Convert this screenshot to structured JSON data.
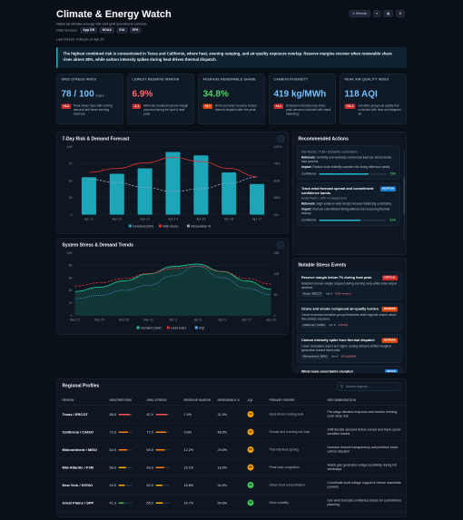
{
  "header": {
    "title": "Climate & Energy Watch",
    "subtitle": "National climate-energy risk and grid operations console",
    "sources_label": "Data Sources:",
    "sources": [
      "App DB",
      "NOAA",
      "EIA",
      "EPA"
    ],
    "last_refresh": "Last refresh: 4:38 pm on Apr 20",
    "refresh": "Refresh"
  },
  "insight": "The highest combined risk is concentrated in Texas and California, where heat, evening ramping, and air-quality exposure overlap. Reserve margins recover when renewable share rises above 38%, while carbon intensity spikes during heat-driven thermal dispatch.",
  "kpis": [
    {
      "label": "GRID STRESS INDEX",
      "value": "78 / 100",
      "unit": "index",
      "delta": "+4.2",
      "note": "Peak stress rises with cooling demand and fewer evening reserves.",
      "color": "#74c0fc",
      "delta_color": "#c92a2a"
    },
    {
      "label": "LOWEST RESERVE MARGIN",
      "value": "6.9%",
      "delta": "-1.1",
      "note": "Minimum modeled reserve margin occurred during the April 6 heat peak.",
      "color": "#ff6b6b",
      "delta_color": "#c92a2a"
    },
    {
      "label": "AVERAGE RENEWABLE SHARE",
      "value": "34.8%",
      "delta": "+2.7",
      "note": "Wind and solar recovery reduce thermal dispatch after the peak.",
      "color": "#51cf66",
      "delta_color": "#d9480f"
    },
    {
      "label": "CARBON INTENSITY",
      "value": "419 kg/MWh",
      "delta": "+4.1",
      "note": "Emissions intensity rose when peak demand coincided with fossil balancing.",
      "color": "#74c0fc",
      "delta_color": "#c92a2a"
    },
    {
      "label": "PEAK AIR QUALITY INDEX",
      "value": "118 AQI",
      "delta": "+11.1",
      "note": "Sensitive-groups air quality risk coincided with heat and stagnant air.",
      "color": "#74c0fc",
      "delta_color": "#c92a2a"
    }
  ],
  "chart_data": [
    {
      "type": "bar",
      "title": "7-Day Risk & Demand Forecast",
      "categories": [
        "Apr 11",
        "Apr 12",
        "Apr 13",
        "Apr 14",
        "Apr 15",
        "Apr 16",
        "Apr 17"
      ],
      "series": [
        {
          "name": "Demand (GW)",
          "type": "bar",
          "color": "#1fb5c9",
          "values": [
            55,
            60,
            68,
            92,
            87,
            62,
            45
          ]
        },
        {
          "name": "Risk Score",
          "type": "line",
          "color": "#e03131",
          "values": [
            62,
            68,
            76,
            84,
            78,
            68,
            56
          ]
        },
        {
          "name": "Renewable %",
          "type": "line",
          "color": "#8ea2c0",
          "line_style": "dashed",
          "axis": "y2",
          "values": [
            52,
            47,
            40,
            34,
            38,
            46,
            55
          ]
        }
      ],
      "ylim": [
        0,
        100
      ],
      "yticks": [
        0,
        25,
        50,
        75,
        100
      ],
      "y2lim": [
        0,
        100
      ],
      "y2ticks": [
        {
          "value": 0,
          "label": "0%"
        },
        {
          "value": 25,
          "label": "25%"
        },
        {
          "value": 50,
          "label": "50%"
        },
        {
          "value": 75,
          "label": "75%"
        },
        {
          "value": 100,
          "label": "100%"
        }
      ],
      "grid": true,
      "legend": "bottom"
    },
    {
      "type": "line",
      "title": "System Stress & Demand Trends",
      "categories": [
        "Mar 22",
        "Mar 25",
        "Mar 28",
        "Mar 31",
        "Apr 3",
        "Apr 6",
        "Apr 9",
        "Apr 12",
        "Apr 15"
      ],
      "series": [
        {
          "name": "Demand (GW)",
          "type": "area",
          "color": "#20c997",
          "values": [
            38,
            45,
            55,
            66,
            78,
            82,
            70,
            55,
            42
          ]
        },
        {
          "name": "Heat Index",
          "type": "line",
          "color": "#e03131",
          "line_style": "dashed",
          "axis": "y2",
          "values": [
            70,
            78,
            88,
            100,
            112,
            118,
            105,
            88,
            75
          ]
        },
        {
          "name": "AQI",
          "type": "line",
          "color": "#4dabf7",
          "line_style": "dotted",
          "axis": "y2",
          "values": [
            40,
            48,
            60,
            72,
            95,
            118,
            90,
            65,
            50
          ]
        }
      ],
      "ylim": [
        0,
        100
      ],
      "yticks": [
        0,
        20,
        40,
        60,
        80,
        100
      ],
      "y2lim": [
        0,
        150
      ],
      "y2ticks": [
        0,
        50,
        100,
        150
      ],
      "grid": true,
      "legend": "bottom"
    }
  ],
  "actions": {
    "title": "Recommended Actions",
    "items": [
      {
        "meta": "Mid-Atlantic / PJM • Reliability coordination",
        "rationale_label": "Rationale:",
        "rationale": "Humidity and weekday commercial load can stress dense load pockets.",
        "impact_label": "Impact:",
        "impact": "Reduce local reliability surprise risk during afternoon peaks.",
        "confidence_label": "Confidence",
        "confidence": 73,
        "confidence_text": "73%"
      },
      {
        "title": "Track wind forecast spread and commitment confidence bands.",
        "tag": "MONITOR",
        "meta": "Great Plains / SPP • Forecast error",
        "rationale_label": "Rationale:",
        "rationale": "High-variance wind ramps increase balancing uncertainty.",
        "impact_label": "Impact:",
        "impact": "Improve commitment timing without over-procuring thermal backup.",
        "confidence_label": "Confidence",
        "confidence": 61,
        "confidence_text": "61%"
      }
    ]
  },
  "events": {
    "title": "Notable Stress Events",
    "items": [
      {
        "title": "Reserve margin below 7% during heat peak",
        "tag": "CRITICAL",
        "tag_color": "#c92a2a",
        "description": "Modeled reserve margin dropped during evening ramp while solar output declined.",
        "region": "Texas / ERCOT",
        "date": "Apr 6",
        "metric": "6.9% reserve"
      },
      {
        "title": "Ozone and smoke compound air-quality burden",
        "tag": "WARNING",
        "tag_color": "#d9480f",
        "description": "Ozone exceeded sensitive-group thresholds while regional smoke raised fine-particle exposure.",
        "region": "California / CAISO",
        "date": "Apr 6",
        "metric": "118 AQI"
      },
      {
        "title": "Carbon intensity spike from thermal dispatch",
        "tag": "WARNING",
        "tag_color": "#d9480f",
        "description": "Lower renewable output and higher cooling demand shifted marginal generation toward fossil units.",
        "region": "Midcontinent / MISO",
        "date": "Apr 6",
        "metric": "419 kg/MWh"
      },
      {
        "title": "Wind ramp uncertainty elevated",
        "tag": "WATCH",
        "tag_color": "#1c7ed6"
      }
    ]
  },
  "table": {
    "title": "Regional Profiles",
    "search": "Search regions...",
    "columns": [
      "REGION",
      "WEATHER RISK",
      "GRID STRESS",
      "RESERVE MARGIN",
      "RENEWABLE %",
      "AQI",
      "PRIMARY DRIVER",
      "RECOMMENDATION"
    ],
    "rows": [
      [
        "Texas / ERCOT",
        "88.0",
        "87.0",
        "7.4%",
        "31.0%",
        "74",
        "Heat-driven cooling load",
        "Pre-stage demand response and monitor evening solar ramp risk."
      ],
      [
        "California / CAISO",
        "72.0",
        "77.0",
        "9.8%",
        "48.0%",
        "92",
        "Smoke and evening net load",
        "Shift flexible demand before sunset and track ozone-sensitive basins."
      ],
      [
        "Midcontinent / MISO",
        "64.0",
        "69.0",
        "12.2%",
        "29.0%",
        "58",
        "Thermal fleet cycling",
        "Increase reserve transparency and prioritize lower-carbon dispatch."
      ],
      [
        "Mid-Atlantic / PJM",
        "58.0",
        "63.0",
        "15.1%",
        "18.0%",
        "66",
        "Peak load congestion",
        "Watch gas generator outage sensitivity during hot weekdays."
      ],
      [
        "New York / NYISO",
        "49.0",
        "52.0",
        "18.8%",
        "34.0%",
        "41",
        "Urban heat concentration",
        "Coordinate local voltage support in dense downstate pockets."
      ],
      [
        "Great Plains / SPP",
        "41.0",
        "55.0",
        "16.7%",
        "54.0%",
        "37",
        "Wind volatility",
        "Use wind forecast confidence bands for commitment planning."
      ]
    ]
  }
}
